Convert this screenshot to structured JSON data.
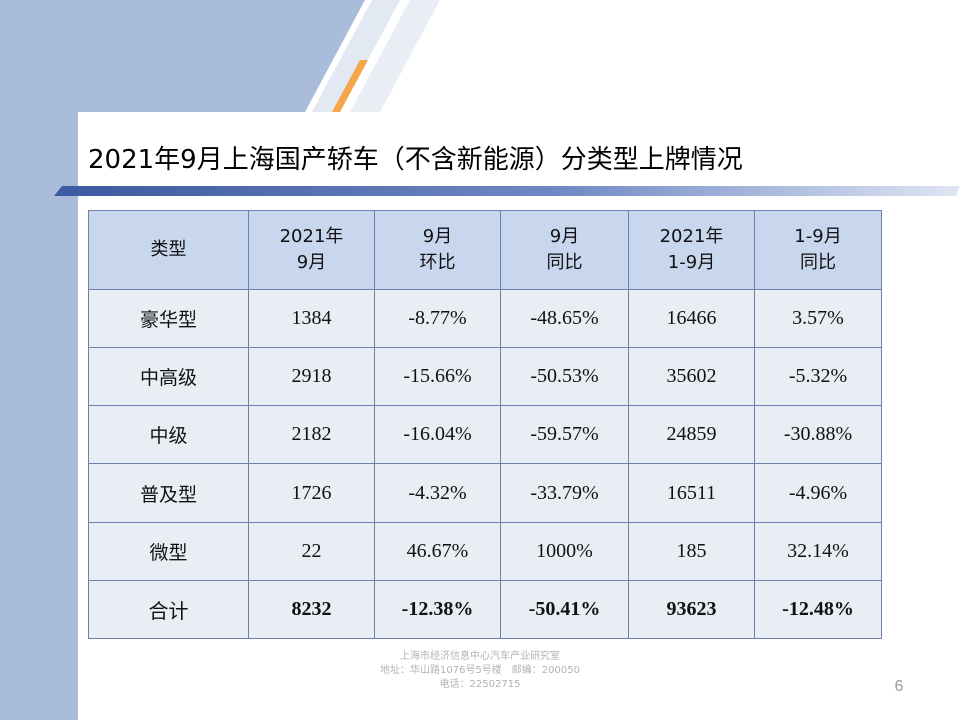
{
  "title": "2021年9月上海国产轿车（不含新能源）分类型上牌情况",
  "table": {
    "headers": [
      [
        "类型"
      ],
      [
        "2021年",
        "9月"
      ],
      [
        "9月",
        "环比"
      ],
      [
        "9月",
        "同比"
      ],
      [
        "2021年",
        "1-9月"
      ],
      [
        "1-9月",
        "同比"
      ]
    ],
    "rows": [
      [
        "豪华型",
        "1384",
        "-8.77%",
        "-48.65%",
        "16466",
        "3.57%"
      ],
      [
        "中高级",
        "2918",
        "-15.66%",
        "-50.53%",
        "35602",
        "-5.32%"
      ],
      [
        "中级",
        "2182",
        "-16.04%",
        "-59.57%",
        "24859",
        "-30.88%"
      ],
      [
        "普及型",
        "1726",
        "-4.32%",
        "-33.79%",
        "16511",
        "-4.96%"
      ],
      [
        "微型",
        "22",
        "46.67%",
        "1000%",
        "185",
        "32.14%"
      ],
      [
        "合计",
        "8232",
        "-12.38%",
        "-50.41%",
        "93623",
        "-12.48%"
      ]
    ]
  },
  "footer": {
    "line1": "上海市经济信息中心汽车产业研究室",
    "line2": "地址：华山路1076号5号楼　邮编：200050",
    "line3": "电话：22502715"
  },
  "page_number": "6",
  "colors": {
    "side_band": "#a9bcd9",
    "header_fill": "#c9d7ee",
    "cell_fill": "#e9edf4",
    "border": "#6f7fae",
    "accent_orange": "#f5a54a"
  }
}
